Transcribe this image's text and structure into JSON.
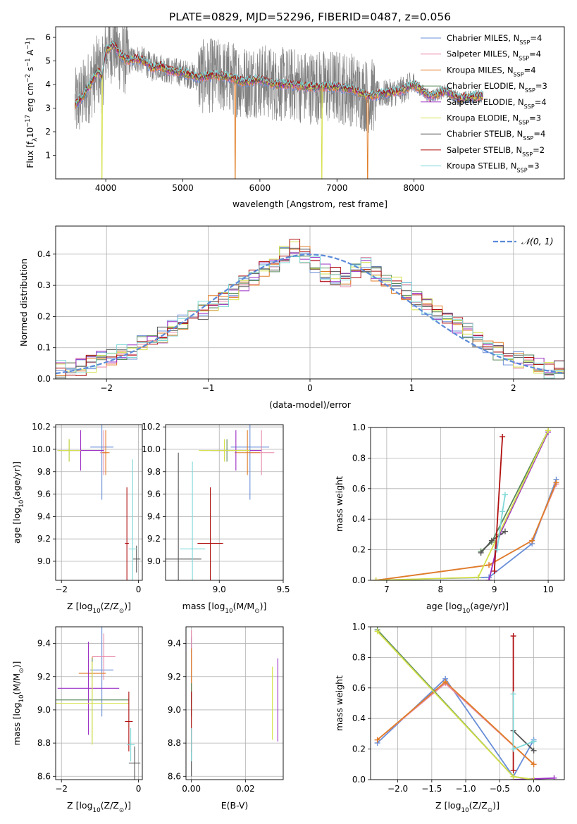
{
  "figure": {
    "title": "PLATE=0829, MJD=52296, FIBERID=0487, z=0.056"
  },
  "models": [
    {
      "key": "chab_miles",
      "label": "Chabrier MILES, N",
      "sub": "SSP",
      "tail": "=4",
      "color": "#6a8fd8"
    },
    {
      "key": "salp_miles",
      "label": "Salpeter MILES, N",
      "sub": "SSP",
      "tail": "=4",
      "color": "#e888a8"
    },
    {
      "key": "krou_miles",
      "label": "Kroupa MILES, N",
      "sub": "SSP",
      "tail": "=4",
      "color": "#e07e28"
    },
    {
      "key": "chab_elodie",
      "label": "Chabrier ELODIE, N",
      "sub": "SSP",
      "tail": "=3",
      "color": "#5b8a5b"
    },
    {
      "key": "salp_elodie",
      "label": "Salpeter ELODIE, N",
      "sub": "SSP",
      "tail": "=4",
      "color": "#9c2fc4"
    },
    {
      "key": "krou_elodie",
      "label": "Kroupa ELODIE, N",
      "sub": "SSP",
      "tail": "=3",
      "color": "#d4e04a"
    },
    {
      "key": "chab_stelib",
      "label": "Chabrier STELIB, N",
      "sub": "SSP",
      "tail": "=4",
      "color": "#555555"
    },
    {
      "key": "salp_stelib",
      "label": "Salpeter STELIB, N",
      "sub": "SSP",
      "tail": "=2",
      "color": "#b01010"
    },
    {
      "key": "krou_stelib",
      "label": "Kroupa STELIB, N",
      "sub": "SSP",
      "tail": "=3",
      "color": "#7fd8d8"
    }
  ],
  "chart_data": [
    {
      "id": "spectrum",
      "type": "line",
      "xlabel": "wavelength [Angstrom, rest frame]",
      "ylabel_parts": [
        "Flux [f",
        "λ",
        "10",
        "−17",
        " erg cm",
        "−2",
        " s",
        "−1",
        " A",
        "−1",
        "]"
      ],
      "xlim": [
        3350,
        9950
      ],
      "ylim": [
        0,
        6.45
      ],
      "xticks": [
        4000,
        5000,
        6000,
        7000,
        8000
      ],
      "yticks": [
        1,
        2,
        3,
        4,
        5,
        6
      ],
      "data_color": "#808080",
      "continuum_x": [
        3600,
        3700,
        3800,
        3900,
        3950,
        4000,
        4100,
        4200,
        4300,
        4400,
        4500,
        4600,
        4700,
        4800,
        5000,
        5200,
        5400,
        5600,
        5800,
        6000,
        6200,
        6400,
        6600,
        6800,
        7000,
        7200,
        7400,
        7600,
        7800,
        8000,
        8200,
        8400,
        8600,
        8800,
        8900
      ],
      "continuum_y": [
        3.1,
        3.5,
        4.0,
        4.6,
        4.3,
        5.4,
        5.7,
        5.2,
        5.0,
        5.1,
        5.0,
        4.7,
        4.8,
        4.6,
        4.5,
        4.3,
        4.4,
        4.3,
        4.1,
        4.2,
        4.0,
        4.0,
        3.9,
        3.9,
        3.9,
        3.8,
        3.5,
        3.6,
        3.7,
        4.0,
        3.5,
        3.7,
        3.4,
        3.5,
        3.5
      ]
    },
    {
      "id": "residuals",
      "type": "step",
      "xlabel": "(data-model)/error",
      "ylabel": "Normed distribution",
      "xlim": [
        -2.5,
        2.5
      ],
      "ylim": [
        0,
        0.49
      ],
      "xticks": [
        -2,
        -1,
        0,
        1,
        2
      ],
      "yticks": [
        0.0,
        0.1,
        0.2,
        0.3,
        0.4
      ],
      "bin_edges_start": -2.5,
      "bin_width": 0.1,
      "base_hist": [
        0.03,
        0.03,
        0.04,
        0.05,
        0.06,
        0.07,
        0.08,
        0.09,
        0.11,
        0.12,
        0.14,
        0.16,
        0.18,
        0.2,
        0.22,
        0.24,
        0.26,
        0.28,
        0.3,
        0.32,
        0.35,
        0.37,
        0.4,
        0.42,
        0.4,
        0.37,
        0.34,
        0.33,
        0.32,
        0.35,
        0.36,
        0.34,
        0.32,
        0.3,
        0.28,
        0.25,
        0.23,
        0.21,
        0.19,
        0.17,
        0.15,
        0.13,
        0.11,
        0.09,
        0.07,
        0.06,
        0.05,
        0.04,
        0.03,
        0.03
      ],
      "legend_label": "𝒩(0, 1)",
      "normal_color": "#5b8ad8"
    },
    {
      "id": "age_vs_Z",
      "type": "scatter-errorbar",
      "xlabel_parts": [
        "Z [log",
        "10",
        "(Z/Z",
        "⊙",
        ")]"
      ],
      "ylabel_parts": [
        "age  [log",
        "10",
        "(age/yr)]"
      ],
      "xlim": [
        -2.15,
        0.1
      ],
      "ylim": [
        8.83,
        10.22
      ],
      "xticks": [
        -2,
        0
      ],
      "yticks": [
        9.0,
        9.2,
        9.4,
        9.6,
        9.8,
        10.0,
        10.2
      ],
      "points": [
        {
          "m": "chab_miles",
          "x": -0.95,
          "y": 10.02,
          "xe": 0.3,
          "ye": 0.47
        },
        {
          "m": "salp_miles",
          "x": -0.9,
          "y": 9.97,
          "xe": 0.1,
          "ye": 0.2
        },
        {
          "m": "krou_miles",
          "x": -0.85,
          "y": 9.97,
          "xe": 0.1,
          "ye": 0.2
        },
        {
          "m": "chab_elodie",
          "x": -1.8,
          "y": 9.99,
          "xe": 0.3,
          "ye": 0.1
        },
        {
          "m": "salp_elodie",
          "x": -1.5,
          "y": 9.99,
          "xe": 0.6,
          "ye": 0.18
        },
        {
          "m": "krou_elodie",
          "x": -1.8,
          "y": 9.99,
          "xe": 0.3,
          "ye": 0.1
        },
        {
          "m": "chab_stelib",
          "x": -0.05,
          "y": 9.02,
          "xe": 0.1,
          "ye": 0.12
        },
        {
          "m": "salp_stelib",
          "x": -0.3,
          "y": 9.16,
          "xe": 0.05,
          "ye": 0.5
        },
        {
          "m": "krou_stelib",
          "x": -0.15,
          "y": 9.11,
          "xe": 0.1,
          "ye": 0.8
        }
      ]
    },
    {
      "id": "age_vs_mass",
      "type": "scatter-errorbar",
      "xlabel_parts": [
        "mass [log",
        "10",
        "(M/M",
        "⊙",
        ")]"
      ],
      "ylabel_parts": [],
      "xlim": [
        8.58,
        9.5
      ],
      "ylim": [
        8.83,
        10.22
      ],
      "xticks": [
        9.0,
        9.5
      ],
      "yticks": [
        9.0,
        9.2,
        9.4,
        9.6,
        9.8,
        10.0,
        10.2
      ],
      "points": [
        {
          "m": "chab_miles",
          "x": 9.24,
          "y": 10.02,
          "xe": 0.15,
          "ye": 0.47
        },
        {
          "m": "salp_miles",
          "x": 9.33,
          "y": 9.97,
          "xe": 0.1,
          "ye": 0.2
        },
        {
          "m": "krou_miles",
          "x": 9.22,
          "y": 9.97,
          "xe": 0.1,
          "ye": 0.2
        },
        {
          "m": "chab_elodie",
          "x": 9.06,
          "y": 9.99,
          "xe": 0.2,
          "ye": 0.1
        },
        {
          "m": "salp_elodie",
          "x": 9.13,
          "y": 9.99,
          "xe": 0.2,
          "ye": 0.18
        },
        {
          "m": "krou_elodie",
          "x": 9.04,
          "y": 9.99,
          "xe": 0.2,
          "ye": 0.1
        },
        {
          "m": "chab_stelib",
          "x": 8.68,
          "y": 9.02,
          "xe": 0.18,
          "ye": 0.95
        },
        {
          "m": "salp_stelib",
          "x": 8.93,
          "y": 9.16,
          "xe": 0.1,
          "ye": 0.5
        },
        {
          "m": "krou_stelib",
          "x": 8.79,
          "y": 9.11,
          "xe": 0.1,
          "ye": 0.78
        }
      ]
    },
    {
      "id": "mw_vs_age",
      "type": "line",
      "xlabel_parts": [
        "age  [log",
        "10",
        "(age/yr)]"
      ],
      "ylabel": "mass weight",
      "xlim": [
        6.7,
        10.3
      ],
      "ylim": [
        0,
        1.0
      ],
      "xticks": [
        7,
        8,
        9,
        10
      ],
      "yticks": [
        0.0,
        0.2,
        0.4,
        0.6,
        0.8,
        1.0
      ],
      "series": [
        {
          "m": "chab_miles",
          "x": [
            6.8,
            8.9,
            9.7,
            10.15
          ],
          "y": [
            0.0,
            0.02,
            0.24,
            0.66
          ]
        },
        {
          "m": "salp_miles",
          "x": [
            6.8,
            8.9,
            9.7,
            10.15
          ],
          "y": [
            0.0,
            0.1,
            0.26,
            0.63
          ]
        },
        {
          "m": "krou_miles",
          "x": [
            6.8,
            8.9,
            9.7,
            10.15
          ],
          "y": [
            0.0,
            0.1,
            0.26,
            0.64
          ]
        },
        {
          "m": "chab_elodie",
          "x": [
            8.75,
            8.95,
            10.0
          ],
          "y": [
            0.19,
            0.25,
            0.98
          ]
        },
        {
          "m": "salp_elodie",
          "x": [
            8.9,
            9.1,
            10.0
          ],
          "y": [
            0.0,
            0.3,
            0.97
          ]
        },
        {
          "m": "krou_elodie",
          "x": [
            6.8,
            8.7,
            10.0
          ],
          "y": [
            0.0,
            0.02,
            0.98
          ]
        },
        {
          "m": "chab_stelib",
          "x": [
            8.75,
            8.95,
            9.2
          ],
          "y": [
            0.18,
            0.26,
            0.32
          ]
        },
        {
          "m": "salp_stelib",
          "x": [
            9.0,
            9.15
          ],
          "y": [
            0.06,
            0.94
          ]
        },
        {
          "m": "krou_stelib",
          "x": [
            9.05,
            9.15,
            9.2
          ],
          "y": [
            0.2,
            0.45,
            0.56
          ]
        }
      ]
    },
    {
      "id": "mass_vs_Z",
      "type": "scatter-errorbar",
      "xlabel_parts": [
        "Z [log",
        "10",
        "(Z/Z",
        "⊙",
        ")]"
      ],
      "ylabel_parts": [
        "mass [log",
        "10",
        "(M/M",
        "⊙",
        ")]"
      ],
      "xlim": [
        -2.15,
        0.1
      ],
      "ylim": [
        8.58,
        9.5
      ],
      "xticks": [
        -2,
        0
      ],
      "yticks": [
        8.6,
        8.8,
        9.0,
        9.2,
        9.4
      ],
      "points": [
        {
          "m": "chab_miles",
          "x": -0.95,
          "y": 9.24,
          "xe": 0.3,
          "ye": 0.28
        },
        {
          "m": "salp_miles",
          "x": -0.9,
          "y": 9.32,
          "xe": 0.3,
          "ye": 0.14
        },
        {
          "m": "krou_miles",
          "x": -1.2,
          "y": 9.22,
          "xe": 0.35,
          "ye": 0.1
        },
        {
          "m": "chab_elodie",
          "x": -1.2,
          "y": 9.06,
          "xe": 0.95,
          "ye": 0.25
        },
        {
          "m": "salp_elodie",
          "x": -1.3,
          "y": 9.13,
          "xe": 0.8,
          "ye": 0.28
        },
        {
          "m": "krou_elodie",
          "x": -1.2,
          "y": 9.04,
          "xe": 0.95,
          "ye": 0.25
        },
        {
          "m": "chab_stelib",
          "x": -0.1,
          "y": 8.68,
          "xe": 0.15,
          "ye": 0.1
        },
        {
          "m": "salp_stelib",
          "x": -0.25,
          "y": 8.93,
          "xe": 0.1,
          "ye": 0.18
        },
        {
          "m": "krou_stelib",
          "x": -0.2,
          "y": 8.79,
          "xe": 0.1,
          "ye": 0.1
        }
      ]
    },
    {
      "id": "mass_vs_EBV",
      "type": "scatter-errorbar",
      "xlabel_parts": [
        "E(B-V)"
      ],
      "ylabel_parts": [],
      "xlim": [
        -0.002,
        0.034
      ],
      "ylim": [
        8.58,
        9.5
      ],
      "xticks": [
        0.0,
        0.02
      ],
      "yticks": [
        8.6,
        8.8,
        9.0,
        9.2,
        9.4
      ],
      "points": [
        {
          "m": "chab_miles",
          "x": 0.0,
          "y": 9.24,
          "xe": 0,
          "ye": 0.2
        },
        {
          "m": "salp_miles",
          "x": 0.0,
          "y": 9.32,
          "xe": 0,
          "ye": 0.16
        },
        {
          "m": "krou_miles",
          "x": 0.0,
          "y": 9.22,
          "xe": 0,
          "ye": 0.15
        },
        {
          "m": "chab_elodie",
          "x": 0.0,
          "y": 9.06,
          "xe": 0,
          "ye": 0.1
        },
        {
          "m": "salp_elodie",
          "x": 0.032,
          "y": 9.06,
          "xe": 0,
          "ye": 0.25
        },
        {
          "m": "krou_elodie",
          "x": 0.03,
          "y": 9.04,
          "xe": 0,
          "ye": 0.22
        },
        {
          "m": "chab_stelib",
          "x": 0.0,
          "y": 8.68,
          "xe": 0,
          "ye": 0.08
        },
        {
          "m": "salp_stelib",
          "x": 0.0,
          "y": 8.93,
          "xe": 0,
          "ye": 0.18
        },
        {
          "m": "krou_stelib",
          "x": 0.0,
          "y": 8.79,
          "xe": 0,
          "ye": 0.1
        }
      ]
    },
    {
      "id": "mw_vs_Z",
      "type": "line",
      "xlabel_parts": [
        "Z [log",
        "10",
        "(Z/Z",
        "⊙",
        ")]"
      ],
      "ylabel": "mass weight",
      "xlim": [
        -2.4,
        0.45
      ],
      "ylim": [
        0,
        1.0
      ],
      "xticks": [
        -2.0,
        -1.5,
        -1.0,
        -0.5,
        0.0
      ],
      "yticks": [
        0.0,
        0.2,
        0.4,
        0.6,
        0.8,
        1.0
      ],
      "series": [
        {
          "m": "chab_miles",
          "x": [
            -2.3,
            -1.3,
            -0.3,
            0.0
          ],
          "y": [
            0.24,
            0.66,
            0.02,
            0.26
          ]
        },
        {
          "m": "salp_miles",
          "x": [
            -2.3,
            -1.3,
            0.0
          ],
          "y": [
            0.26,
            0.63,
            0.1
          ]
        },
        {
          "m": "krou_miles",
          "x": [
            -2.3,
            -1.3,
            0.0
          ],
          "y": [
            0.26,
            0.64,
            0.1
          ]
        },
        {
          "m": "chab_elodie",
          "x": [
            -2.3,
            -0.3,
            0.0
          ],
          "y": [
            0.98,
            0.02,
            0.0
          ]
        },
        {
          "m": "salp_elodie",
          "x": [
            -0.3,
            0.3
          ],
          "y": [
            0.0,
            0.01
          ]
        },
        {
          "m": "krou_elodie",
          "x": [
            -2.3,
            -0.3,
            0.0
          ],
          "y": [
            0.97,
            0.02,
            0.0
          ]
        },
        {
          "m": "chab_stelib",
          "x": [
            -0.3,
            0.0
          ],
          "y": [
            0.32,
            0.19
          ]
        },
        {
          "m": "salp_stelib",
          "x": [
            -0.3,
            -0.3
          ],
          "y": [
            0.06,
            0.94
          ]
        },
        {
          "m": "krou_stelib",
          "x": [
            -0.3,
            -0.3,
            0.0
          ],
          "y": [
            0.56,
            0.2,
            0.25
          ]
        }
      ]
    }
  ]
}
